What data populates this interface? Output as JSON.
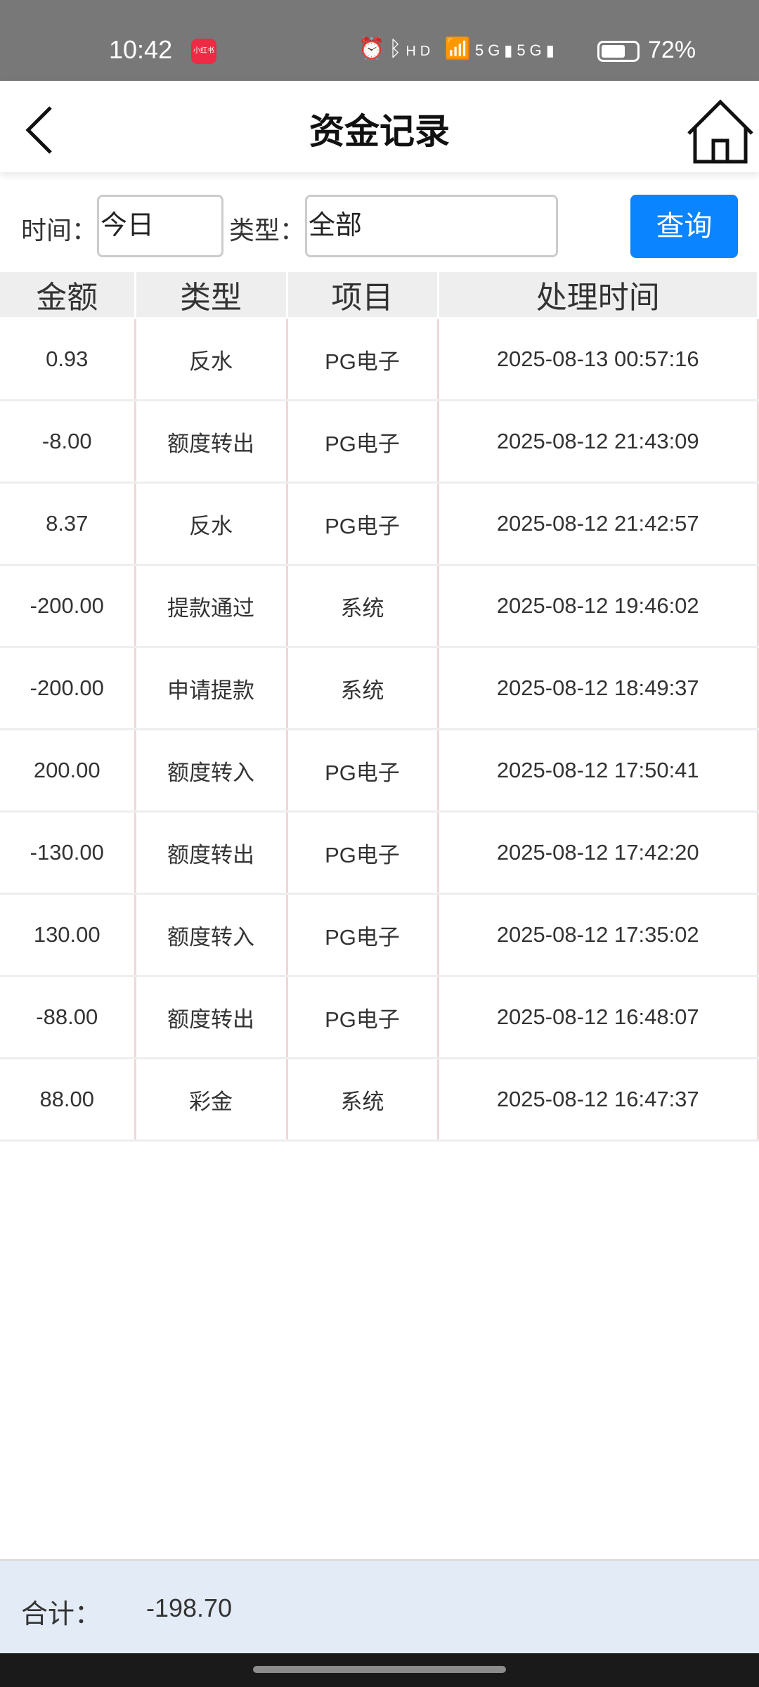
{
  "status_bar": {
    "time": "10:42",
    "app_badge": "小红书",
    "battery_percent": "72%",
    "battery_level": 0.72,
    "icons": [
      "alarm-icon",
      "bluetooth-icon",
      "hd-icon",
      "wifi-icon",
      "5g-signal-icon",
      "5g-signal-icon",
      "battery-icon"
    ]
  },
  "header": {
    "title": "资金记录",
    "back_icon": "chevron-left-icon",
    "home_icon": "home-icon"
  },
  "filter": {
    "time_label": "时间：",
    "time_value": "今日",
    "type_label": "类型：",
    "type_value": "全部",
    "query_button": "查询",
    "accent": "#0a84ff"
  },
  "table": {
    "columns": [
      "金额",
      "类型",
      "项目",
      "处理时间"
    ],
    "rows": [
      [
        "0.93",
        "反水",
        "PG电子",
        "2025-08-13 00:57:16"
      ],
      [
        "-8.00",
        "额度转出",
        "PG电子",
        "2025-08-12 21:43:09"
      ],
      [
        "8.37",
        "反水",
        "PG电子",
        "2025-08-12 21:42:57"
      ],
      [
        "-200.00",
        "提款通过",
        "系统",
        "2025-08-12 19:46:02"
      ],
      [
        "-200.00",
        "申请提款",
        "系统",
        "2025-08-12 18:49:37"
      ],
      [
        "200.00",
        "额度转入",
        "PG电子",
        "2025-08-12 17:50:41"
      ],
      [
        "-130.00",
        "额度转出",
        "PG电子",
        "2025-08-12 17:42:20"
      ],
      [
        "130.00",
        "额度转入",
        "PG电子",
        "2025-08-12 17:35:02"
      ],
      [
        "-88.00",
        "额度转出",
        "PG电子",
        "2025-08-12 16:48:07"
      ],
      [
        "88.00",
        "彩金",
        "系统",
        "2025-08-12 16:47:37"
      ]
    ]
  },
  "footer": {
    "total_label": "合计：",
    "total_value": "-198.70"
  }
}
